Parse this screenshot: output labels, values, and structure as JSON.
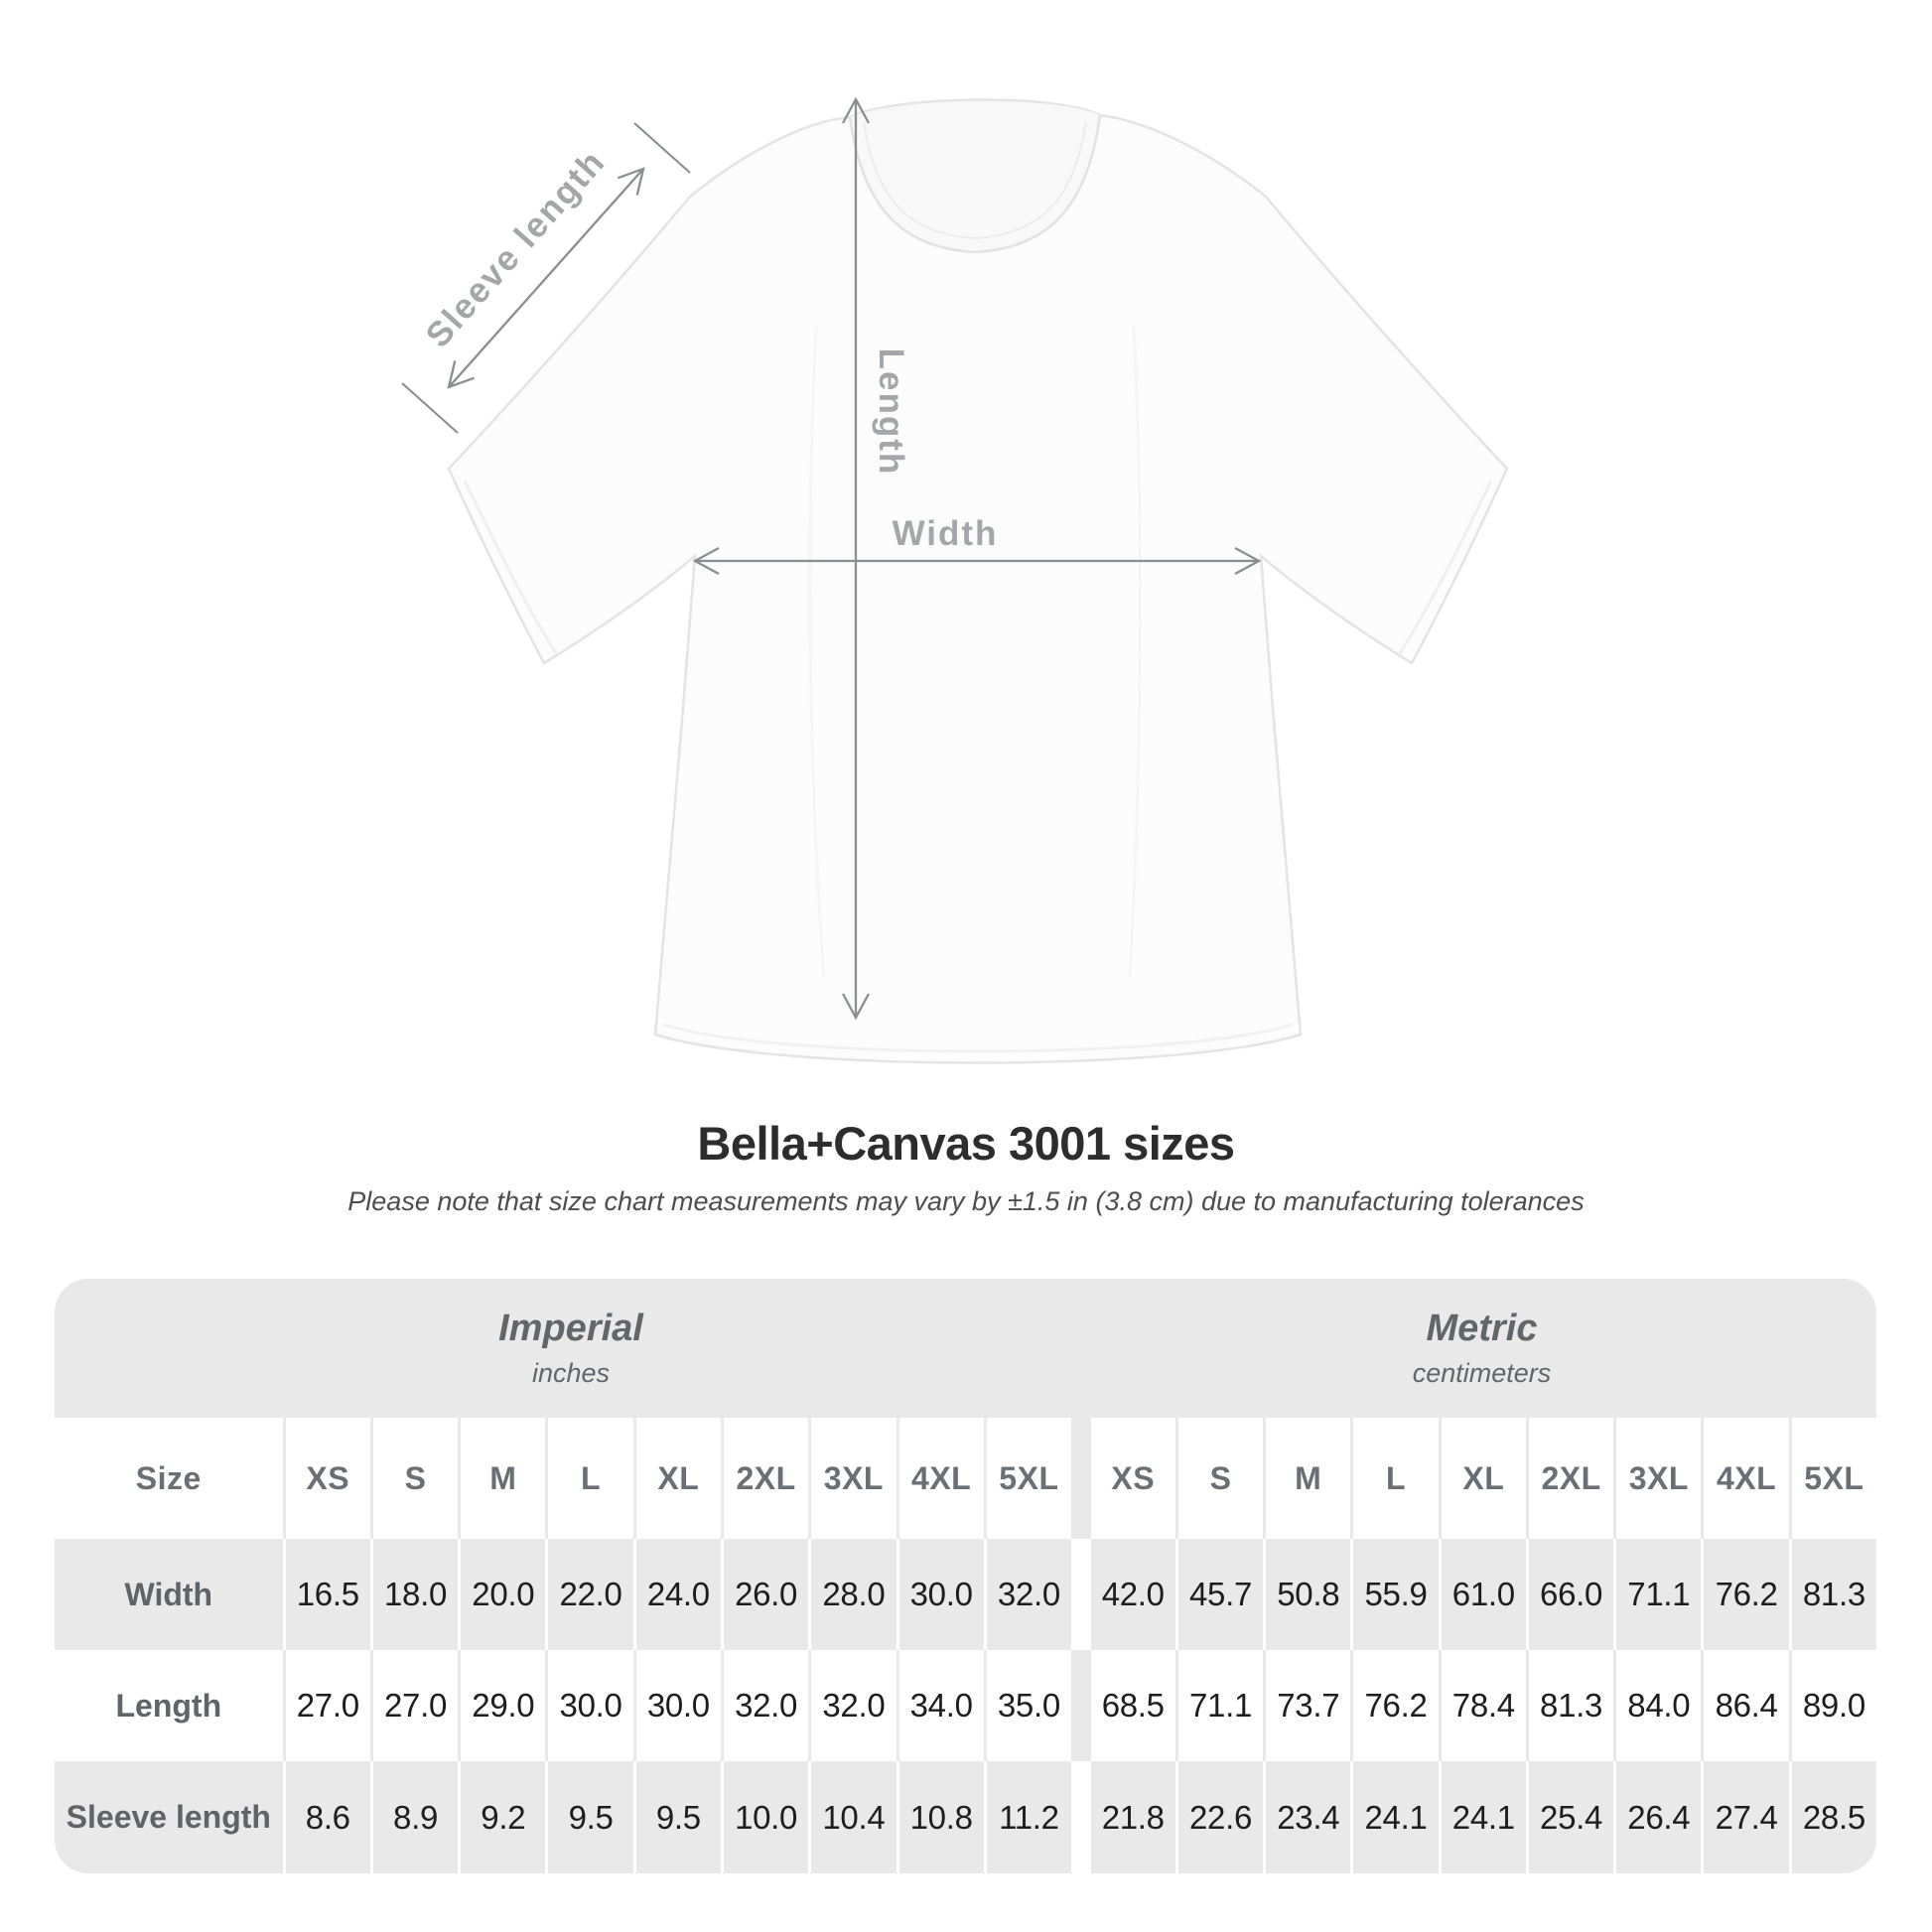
{
  "diagram": {
    "sleeve_length_label": "Sleeve length",
    "length_label": "Length",
    "width_label": "Width"
  },
  "title": "Bella+Canvas 3001 sizes",
  "subtitle": "Please note that size chart measurements may vary by ±1.5 in (3.8 cm) due to manufacturing tolerances",
  "table": {
    "size_header": "Size",
    "sections": [
      {
        "label": "Imperial",
        "unit": "inches"
      },
      {
        "label": "Metric",
        "unit": "centimeters"
      }
    ]
  },
  "chart_data": {
    "type": "table",
    "title": "Bella+Canvas 3001 sizes",
    "note": "Size chart measurements may vary by ±1.5 in (3.8 cm) due to manufacturing tolerances",
    "sections": [
      {
        "name": "Imperial",
        "unit": "inches"
      },
      {
        "name": "Metric",
        "unit": "centimeters"
      }
    ],
    "sizes": [
      "XS",
      "S",
      "M",
      "L",
      "XL",
      "2XL",
      "3XL",
      "4XL",
      "5XL"
    ],
    "rows": [
      {
        "label": "Width",
        "imperial": [
          "16.5",
          "18.0",
          "20.0",
          "22.0",
          "24.0",
          "26.0",
          "28.0",
          "30.0",
          "32.0"
        ],
        "metric": [
          "42.0",
          "45.7",
          "50.8",
          "55.9",
          "61.0",
          "66.0",
          "71.1",
          "76.2",
          "81.3"
        ]
      },
      {
        "label": "Length",
        "imperial": [
          "27.0",
          "27.0",
          "29.0",
          "30.0",
          "30.0",
          "32.0",
          "32.0",
          "34.0",
          "35.0"
        ],
        "metric": [
          "68.5",
          "71.1",
          "73.7",
          "76.2",
          "78.4",
          "81.3",
          "84.0",
          "86.4",
          "89.0"
        ]
      },
      {
        "label": "Sleeve length",
        "imperial": [
          "8.6",
          "8.9",
          "9.2",
          "9.5",
          "9.5",
          "10.0",
          "10.4",
          "10.8",
          "11.2"
        ],
        "metric": [
          "21.8",
          "22.6",
          "23.4",
          "24.1",
          "24.1",
          "25.4",
          "26.4",
          "27.4",
          "28.5"
        ]
      }
    ]
  }
}
